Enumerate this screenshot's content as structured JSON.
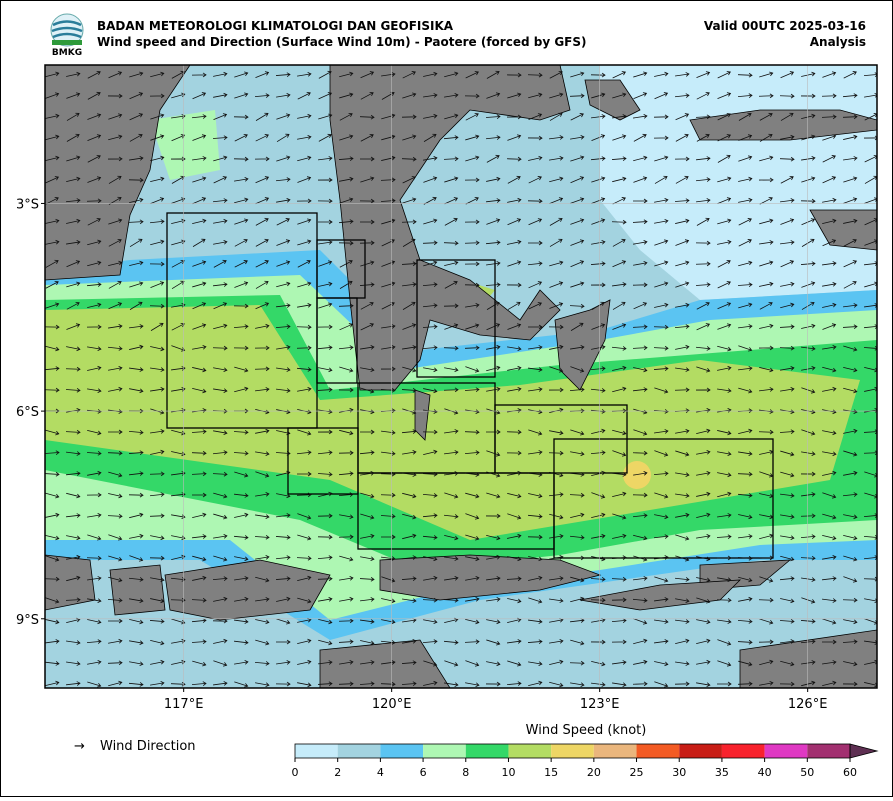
{
  "header": {
    "logo_text": "BMKG",
    "title": "BADAN METEOROLOGI KLIMATOLOGI DAN GEOFISIKA",
    "subtitle": "Wind speed and Direction (Surface Wind 10m) - Paotere (forced by GFS)",
    "valid": "Valid 00UTC 2025-03-16",
    "mode": "Analysis"
  },
  "map": {
    "xlim": [
      115,
      127
    ],
    "ylim": [
      -10,
      -1
    ],
    "xticks": [
      {
        "value": 117,
        "label": "117°E"
      },
      {
        "value": 120,
        "label": "120°E"
      },
      {
        "value": 123,
        "label": "123°E"
      },
      {
        "value": 126,
        "label": "126°E"
      }
    ],
    "yticks": [
      {
        "value": -3,
        "label": "3°S"
      },
      {
        "value": -6,
        "label": "6°S"
      },
      {
        "value": -9,
        "label": "9°S"
      }
    ]
  },
  "legend": {
    "symbol": "→",
    "label": "Wind Direction"
  },
  "colorbar": {
    "title": "Wind Speed (knot)",
    "levels": [
      0,
      2,
      4,
      6,
      8,
      10,
      15,
      20,
      25,
      30,
      35,
      40,
      50,
      60
    ],
    "colors": [
      "#c6ecfa",
      "#a3d3e0",
      "#5bc4f2",
      "#aef7b3",
      "#34d868",
      "#b3dc63",
      "#eed665",
      "#eab67d",
      "#f35b24",
      "#c81d16",
      "#f8222d",
      "#df39c3",
      "#a23070"
    ],
    "extend_color": "#5e2f52"
  }
}
